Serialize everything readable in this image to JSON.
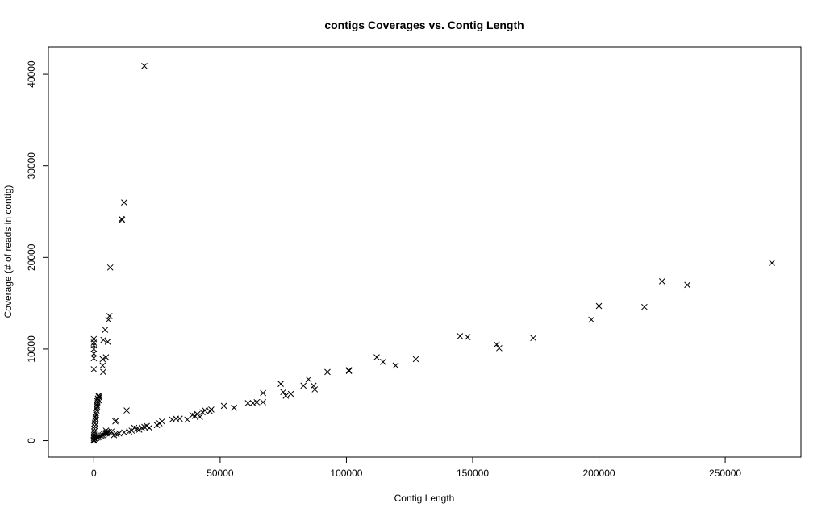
{
  "chart_data": {
    "type": "scatter",
    "title": "contigs Coverages vs. Contig Length",
    "xlabel": "Contig Length",
    "ylabel": "Coverage (# of reads in contig)",
    "xlim": [
      -18000,
      280000
    ],
    "ylim": [
      -1800,
      43000
    ],
    "xticks": [
      0,
      50000,
      100000,
      150000,
      200000,
      250000
    ],
    "yticks": [
      0,
      10000,
      20000,
      30000,
      40000
    ],
    "xtick_labels": [
      "0",
      "50000",
      "100000",
      "150000",
      "200000",
      "250000"
    ],
    "ytick_labels": [
      "0",
      "10000",
      "20000",
      "30000",
      "40000"
    ],
    "grid": false,
    "marker": "x",
    "series": [
      {
        "points": [
          [
            20000,
            40900
          ],
          [
            12000,
            26000
          ],
          [
            11000,
            24200
          ],
          [
            11200,
            24100
          ],
          [
            6500,
            18900
          ],
          [
            6200,
            13600
          ],
          [
            5800,
            13200
          ],
          [
            4500,
            12100
          ],
          [
            3800,
            11000
          ],
          [
            5500,
            10800
          ],
          [
            0,
            11100
          ],
          [
            0,
            10700
          ],
          [
            0,
            10400
          ],
          [
            0,
            10000
          ],
          [
            0,
            9500
          ],
          [
            0,
            9000
          ],
          [
            0,
            7800
          ],
          [
            3500,
            8900
          ],
          [
            4800,
            9100
          ],
          [
            3500,
            8200
          ],
          [
            3700,
            7500
          ],
          [
            1800,
            4900
          ],
          [
            1600,
            4600
          ],
          [
            1400,
            4300
          ],
          [
            1200,
            3900
          ],
          [
            1000,
            3500
          ],
          [
            800,
            3000
          ],
          [
            600,
            2600
          ],
          [
            500,
            2200
          ],
          [
            400,
            1900
          ],
          [
            300,
            1600
          ],
          [
            200,
            1300
          ],
          [
            150,
            1000
          ],
          [
            100,
            800
          ],
          [
            80,
            600
          ],
          [
            60,
            400
          ],
          [
            40,
            250
          ],
          [
            20,
            100
          ],
          [
            0,
            0
          ],
          [
            0,
            50
          ],
          [
            2000,
            4800
          ],
          [
            2200,
            4700
          ],
          [
            1900,
            4400
          ],
          [
            1500,
            4100
          ],
          [
            1300,
            3700
          ],
          [
            1100,
            3300
          ],
          [
            900,
            2800
          ],
          [
            700,
            2400
          ],
          [
            500,
            200
          ],
          [
            1000,
            300
          ],
          [
            1500,
            350
          ],
          [
            2000,
            400
          ],
          [
            2500,
            500
          ],
          [
            3000,
            550
          ],
          [
            3500,
            600
          ],
          [
            4000,
            700
          ],
          [
            4500,
            800
          ],
          [
            5000,
            900
          ],
          [
            6000,
            950
          ],
          [
            7000,
            1000
          ],
          [
            8000,
            600
          ],
          [
            9000,
            700
          ],
          [
            10000,
            800
          ],
          [
            4800,
            1100
          ],
          [
            5000,
            800
          ],
          [
            5500,
            900
          ],
          [
            8500,
            2100
          ],
          [
            8800,
            2200
          ],
          [
            13000,
            3300
          ],
          [
            12000,
            900
          ],
          [
            14000,
            1000
          ],
          [
            15000,
            1100
          ],
          [
            16000,
            1400
          ],
          [
            17000,
            1300
          ],
          [
            18000,
            1200
          ],
          [
            19000,
            1400
          ],
          [
            20000,
            1500
          ],
          [
            21000,
            1600
          ],
          [
            22000,
            1400
          ],
          [
            25000,
            1700
          ],
          [
            26000,
            1900
          ],
          [
            27000,
            2100
          ],
          [
            31000,
            2300
          ],
          [
            32500,
            2400
          ],
          [
            34000,
            2400
          ],
          [
            37000,
            2300
          ],
          [
            39000,
            2800
          ],
          [
            40000,
            2700
          ],
          [
            41000,
            2900
          ],
          [
            42000,
            2600
          ],
          [
            43000,
            3100
          ],
          [
            44000,
            3300
          ],
          [
            46000,
            3200
          ],
          [
            46500,
            3400
          ],
          [
            51500,
            3800
          ],
          [
            55500,
            3600
          ],
          [
            61000,
            4100
          ],
          [
            63000,
            4100
          ],
          [
            64500,
            4200
          ],
          [
            67000,
            5200
          ],
          [
            67000,
            4200
          ],
          [
            74000,
            6200
          ],
          [
            75000,
            5300
          ],
          [
            76000,
            4900
          ],
          [
            78000,
            5100
          ],
          [
            83000,
            6000
          ],
          [
            85000,
            6700
          ],
          [
            87000,
            6000
          ],
          [
            87500,
            5600
          ],
          [
            92500,
            7500
          ],
          [
            101000,
            7700
          ],
          [
            101000,
            7600
          ],
          [
            112000,
            9100
          ],
          [
            114500,
            8600
          ],
          [
            119500,
            8200
          ],
          [
            127500,
            8900
          ],
          [
            145000,
            11400
          ],
          [
            148000,
            11300
          ],
          [
            159500,
            10500
          ],
          [
            160500,
            10100
          ],
          [
            174000,
            11200
          ],
          [
            197000,
            13200
          ],
          [
            200000,
            14700
          ],
          [
            218000,
            14600
          ],
          [
            225000,
            17400
          ],
          [
            235000,
            17000
          ],
          [
            268500,
            19400
          ]
        ]
      }
    ]
  }
}
